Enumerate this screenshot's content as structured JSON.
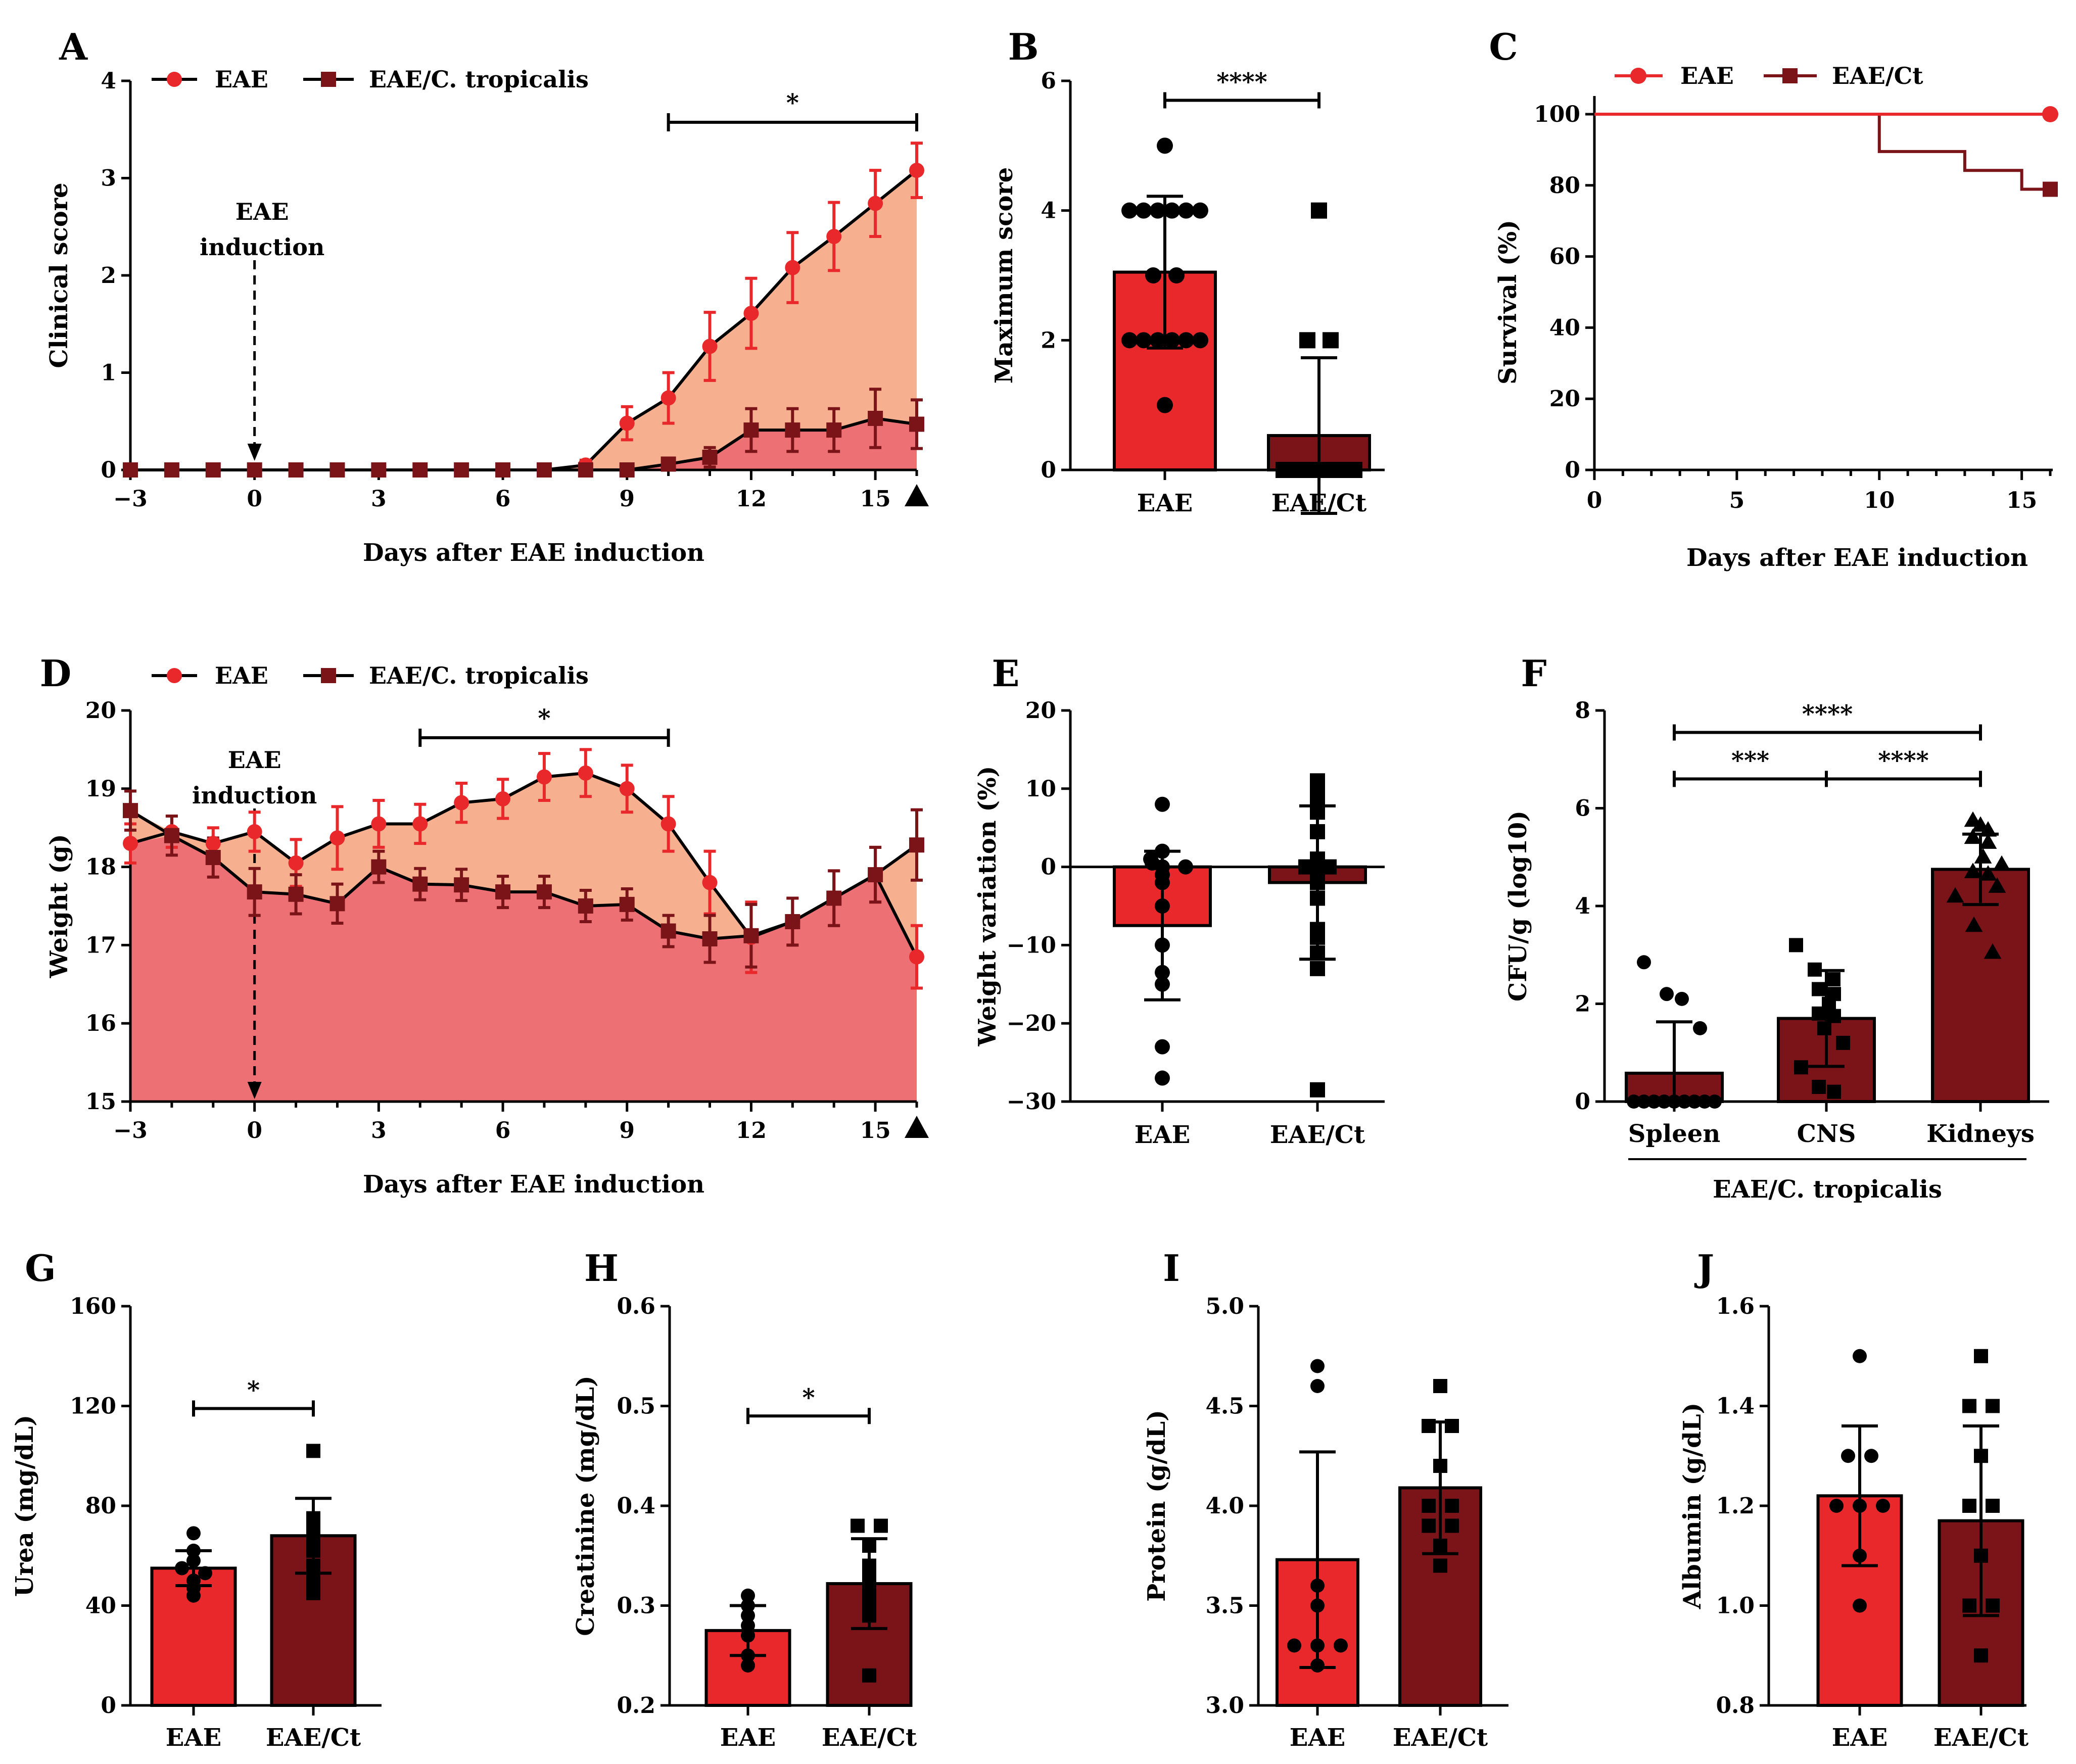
{
  "figure": {
    "colors": {
      "eae": "#e8282b",
      "ct": "#7a1418",
      "fill_top": "#f6b090",
      "fill_bottom": "#ec7074",
      "line": "#000000"
    }
  },
  "chart_data": [
    {
      "panel": "A",
      "type": "line",
      "xlabel": "Days after EAE induction",
      "ylabel": "Clinical score",
      "xlim": [
        -3,
        16
      ],
      "ylim": [
        0,
        4
      ],
      "xticks": [
        -3,
        0,
        3,
        6,
        9,
        12,
        15
      ],
      "yticks": [
        0,
        1,
        2,
        3,
        4
      ],
      "legend": [
        "EAE",
        "EAE/C. tropicalis"
      ],
      "annotation": {
        "text_line1": "EAE",
        "text_line2": "induction",
        "x": 0
      },
      "significance": {
        "label": "*",
        "from": 10,
        "to": 16
      },
      "endpoint_marker_x": 16,
      "x": [
        -3,
        -2,
        -1,
        0,
        1,
        2,
        3,
        4,
        5,
        6,
        7,
        8,
        9,
        10,
        11,
        12,
        13,
        14,
        15,
        16
      ],
      "series": [
        {
          "name": "EAE",
          "values": [
            0,
            0,
            0,
            0,
            0,
            0,
            0,
            0,
            0,
            0,
            0,
            0.05,
            0.48,
            0.74,
            1.27,
            1.61,
            2.08,
            2.4,
            2.74,
            3.08
          ],
          "errors": [
            0,
            0,
            0,
            0,
            0,
            0,
            0,
            0,
            0,
            0,
            0,
            0.05,
            0.17,
            0.26,
            0.35,
            0.36,
            0.36,
            0.35,
            0.34,
            0.28
          ]
        },
        {
          "name": "EAE/C. tropicalis",
          "values": [
            0,
            0,
            0,
            0,
            0,
            0,
            0,
            0,
            0,
            0,
            0,
            0,
            0,
            0.06,
            0.13,
            0.41,
            0.41,
            0.41,
            0.53,
            0.47
          ],
          "errors": [
            0,
            0,
            0,
            0,
            0,
            0,
            0,
            0,
            0,
            0,
            0,
            0,
            0,
            0.06,
            0.1,
            0.22,
            0.22,
            0.22,
            0.3,
            0.25
          ]
        }
      ]
    },
    {
      "panel": "B",
      "type": "bar",
      "ylabel": "Maximum score",
      "ylim": [
        0,
        6
      ],
      "yticks": [
        0,
        2,
        4,
        6
      ],
      "categories": [
        "EAE",
        "EAE/Ct"
      ],
      "values": [
        3.05,
        0.53
      ],
      "errors": [
        1.17,
        1.2
      ],
      "points": [
        [
          5,
          4,
          4,
          4,
          4,
          4,
          4,
          3,
          3,
          2,
          2,
          2,
          2,
          2,
          2,
          1
        ],
        [
          4,
          2,
          2,
          0,
          0,
          0,
          0,
          0,
          0,
          0,
          0,
          0,
          0,
          0,
          0
        ]
      ],
      "significance": [
        {
          "label": "****",
          "from": 0,
          "to": 1,
          "y": 5.7
        }
      ]
    },
    {
      "panel": "C",
      "type": "line",
      "xlabel": "Days after EAE induction",
      "ylabel": "Survival (%)",
      "xlim": [
        0,
        16
      ],
      "ylim": [
        0,
        110
      ],
      "xticks": [
        0,
        5,
        10,
        15
      ],
      "yticks": [
        0,
        20,
        40,
        60,
        80,
        100
      ],
      "legend": [
        "EAE",
        "EAE/Ct"
      ],
      "series": [
        {
          "name": "EAE",
          "x": [
            0,
            16
          ],
          "values": [
            100,
            100
          ]
        },
        {
          "name": "EAE/Ct",
          "x": [
            0,
            10,
            10,
            13,
            13,
            15,
            15,
            16
          ],
          "values": [
            100,
            100,
            89.5,
            89.5,
            84.2,
            84.2,
            78.9,
            78.9
          ]
        }
      ]
    },
    {
      "panel": "D",
      "type": "line",
      "xlabel": "Days after EAE induction",
      "ylabel": "Weight (g)",
      "xlim": [
        -3,
        16
      ],
      "ylim": [
        15,
        20
      ],
      "xticks": [
        -3,
        0,
        3,
        6,
        9,
        12,
        15
      ],
      "yticks": [
        15,
        16,
        17,
        18,
        19,
        20
      ],
      "legend": [
        "EAE",
        "EAE/C. tropicalis"
      ],
      "annotation": {
        "text_line1": "EAE",
        "text_line2": "induction",
        "x": 0
      },
      "significance": {
        "label": "*",
        "from": 4,
        "to": 10
      },
      "endpoint_marker_x": 16,
      "x": [
        -3,
        -2,
        -1,
        0,
        1,
        2,
        3,
        4,
        5,
        6,
        7,
        8,
        9,
        10,
        11,
        12,
        13,
        14,
        15,
        16
      ],
      "series": [
        {
          "name": "EAE",
          "values": [
            18.3,
            18.45,
            18.3,
            18.45,
            18.05,
            18.37,
            18.55,
            18.55,
            18.82,
            18.87,
            19.15,
            19.2,
            19.0,
            18.55,
            17.8,
            17.1,
            17.3,
            17.6,
            17.9,
            16.85
          ],
          "errors": [
            0.25,
            0.2,
            0.2,
            0.25,
            0.3,
            0.4,
            0.3,
            0.25,
            0.25,
            0.25,
            0.3,
            0.3,
            0.3,
            0.35,
            0.4,
            0.45,
            0.3,
            0.35,
            0.35,
            0.4
          ]
        },
        {
          "name": "EAE/C. tropicalis",
          "values": [
            18.72,
            18.4,
            18.12,
            17.68,
            17.65,
            17.53,
            18.0,
            17.78,
            17.77,
            17.68,
            17.68,
            17.5,
            17.52,
            17.18,
            17.08,
            17.12,
            17.3,
            17.6,
            17.9,
            18.28
          ],
          "errors": [
            0.25,
            0.25,
            0.25,
            0.3,
            0.25,
            0.25,
            0.2,
            0.2,
            0.2,
            0.2,
            0.2,
            0.2,
            0.2,
            0.2,
            0.3,
            0.4,
            0.3,
            0.35,
            0.35,
            0.45
          ]
        }
      ]
    },
    {
      "panel": "E",
      "type": "bar",
      "ylabel": "Weight variation (%)",
      "ylim": [
        -30,
        20
      ],
      "yticks": [
        -30,
        -20,
        -10,
        0,
        10,
        20
      ],
      "categories": [
        "EAE",
        "EAE/Ct"
      ],
      "values": [
        -7.5,
        -2.0
      ],
      "errors": [
        9.5,
        9.8
      ],
      "points": [
        [
          8,
          2,
          1,
          0.5,
          0,
          0,
          -1,
          -2,
          -5,
          -10,
          -13.5,
          -15,
          -23,
          -27
        ],
        [
          11,
          9.5,
          8,
          7,
          4.5,
          1,
          0,
          0,
          -1,
          -2,
          -4,
          -8,
          -9,
          -11,
          -13,
          -28.5
        ]
      ],
      "significance": []
    },
    {
      "panel": "F",
      "type": "bar",
      "ylabel": "CFU/g (log10)",
      "ylim": [
        0,
        8
      ],
      "yticks": [
        0,
        2,
        4,
        6,
        8
      ],
      "categories": [
        "Spleen",
        "CNS",
        "Kidneys"
      ],
      "group_label": "EAE/C. tropicalis",
      "values": [
        0.58,
        1.7,
        4.75
      ],
      "errors": [
        1.05,
        0.98,
        0.72
      ],
      "points": [
        [
          2.85,
          2.2,
          2.1,
          1.5,
          0,
          0,
          0,
          0,
          0,
          0,
          0,
          0,
          0
        ],
        [
          3.2,
          2.7,
          2.5,
          2.3,
          2.2,
          2.0,
          1.8,
          1.75,
          1.5,
          1.2,
          0.7,
          0.3,
          0.2
        ],
        [
          5.75,
          5.65,
          5.55,
          5.4,
          5.3,
          5.0,
          4.85,
          4.7,
          4.65,
          4.4,
          4.2,
          3.6,
          3.05
        ]
      ],
      "significance": [
        {
          "label": "***",
          "from": 0,
          "to": 1,
          "y": 6.6
        },
        {
          "label": "****",
          "from": 1,
          "to": 2,
          "y": 6.6
        },
        {
          "label": "****",
          "from": 0,
          "to": 2,
          "y": 7.55
        }
      ]
    },
    {
      "panel": "G",
      "type": "bar",
      "ylabel": "Urea (mg/dL)",
      "ylim": [
        0,
        160
      ],
      "yticks": [
        0,
        40,
        80,
        120,
        160
      ],
      "categories": [
        "EAE",
        "EAE/Ct"
      ],
      "values": [
        55,
        68
      ],
      "errors": [
        7,
        15
      ],
      "points": [
        [
          69,
          62,
          58,
          55,
          53,
          50,
          47,
          44
        ],
        [
          102,
          75,
          72,
          68,
          65,
          62,
          56,
          50,
          45
        ]
      ],
      "significance": [
        {
          "label": "*",
          "from": 0,
          "to": 1,
          "y": 119
        }
      ]
    },
    {
      "panel": "H",
      "type": "bar",
      "ylabel": "Creatinine (mg/dL)",
      "ylim": [
        0.2,
        0.6
      ],
      "yticks": [
        0.2,
        0.3,
        0.4,
        0.5,
        0.6
      ],
      "categories": [
        "EAE",
        "EAE/Ct"
      ],
      "values": [
        0.275,
        0.322
      ],
      "errors": [
        0.025,
        0.045
      ],
      "points": [
        [
          0.31,
          0.3,
          0.29,
          0.28,
          0.27,
          0.25,
          0.24
        ],
        [
          0.38,
          0.38,
          0.36,
          0.34,
          0.33,
          0.32,
          0.31,
          0.3,
          0.29,
          0.23
        ]
      ],
      "significance": [
        {
          "label": "*",
          "from": 0,
          "to": 1,
          "y": 0.49
        }
      ]
    },
    {
      "panel": "I",
      "type": "bar",
      "ylabel": "Protein (g/dL)",
      "ylim": [
        3.0,
        5.0
      ],
      "yticks": [
        3.0,
        3.5,
        4.0,
        4.5,
        5.0
      ],
      "categories": [
        "EAE",
        "EAE/Ct"
      ],
      "values": [
        3.73,
        4.09
      ],
      "errors": [
        0.54,
        0.33
      ],
      "points": [
        [
          4.7,
          4.6,
          3.6,
          3.5,
          3.3,
          3.3,
          3.3,
          3.2
        ],
        [
          4.6,
          4.4,
          4.4,
          4.2,
          4.0,
          4.0,
          3.9,
          3.9,
          3.8,
          3.7
        ]
      ],
      "significance": []
    },
    {
      "panel": "J",
      "type": "bar",
      "ylabel": "Albumin (g/dL)",
      "ylim": [
        0.8,
        1.6
      ],
      "yticks": [
        0.8,
        1.0,
        1.2,
        1.4,
        1.6
      ],
      "categories": [
        "EAE",
        "EAE/Ct"
      ],
      "values": [
        1.22,
        1.17
      ],
      "errors": [
        0.14,
        0.19
      ],
      "points": [
        [
          1.5,
          1.3,
          1.3,
          1.2,
          1.2,
          1.2,
          1.1,
          1.0
        ],
        [
          1.5,
          1.4,
          1.4,
          1.3,
          1.2,
          1.2,
          1.1,
          1.0,
          1.0,
          0.9
        ]
      ],
      "significance": []
    }
  ]
}
